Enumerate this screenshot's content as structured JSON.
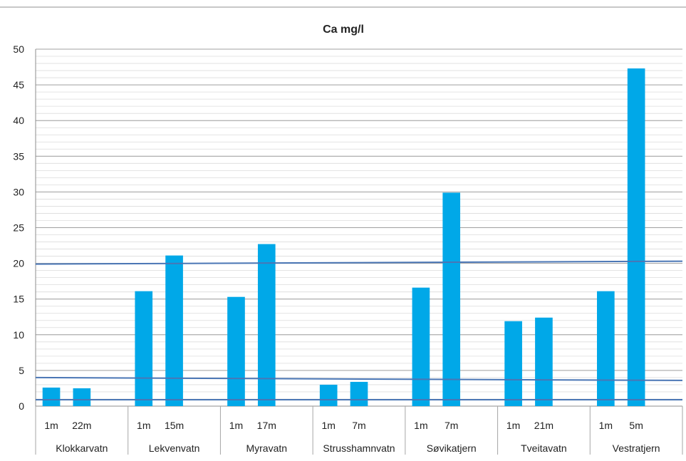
{
  "chart_data": {
    "type": "bar",
    "title": "Ca mg/l",
    "xlabel": "",
    "ylabel": "",
    "ylim": [
      0,
      50
    ],
    "yticks": [
      0,
      5,
      10,
      15,
      20,
      25,
      30,
      35,
      40,
      45,
      50
    ],
    "minor_grid_step": 1,
    "grid": true,
    "legend": "none",
    "bar_color": "#00a8e8",
    "groups": [
      {
        "name": "Klokkarvatn",
        "bars": [
          {
            "label": "1m",
            "value": 2.6
          },
          {
            "label": "22m",
            "value": 2.5
          }
        ]
      },
      {
        "name": "Lekvenvatn",
        "bars": [
          {
            "label": "1m",
            "value": 16.1
          },
          {
            "label": "15m",
            "value": 21.1
          }
        ]
      },
      {
        "name": "Myravatn",
        "bars": [
          {
            "label": "1m",
            "value": 15.3
          },
          {
            "label": "17m",
            "value": 22.7
          }
        ]
      },
      {
        "name": "Strusshamnvatn",
        "bars": [
          {
            "label": "1m",
            "value": 3.0
          },
          {
            "label": "7m",
            "value": 3.4
          }
        ]
      },
      {
        "name": "Søvikatjern",
        "bars": [
          {
            "label": "1m",
            "value": 16.6
          },
          {
            "label": "7m",
            "value": 29.9
          }
        ]
      },
      {
        "name": "Tveitavatn",
        "bars": [
          {
            "label": "1m",
            "value": 11.9
          },
          {
            "label": "21m",
            "value": 12.4
          }
        ]
      },
      {
        "name": "Vestratjern",
        "bars": [
          {
            "label": "1m",
            "value": 16.1
          },
          {
            "label": "5m",
            "value": 47.3
          }
        ]
      }
    ],
    "reference_lines": [
      {
        "start": 19.9,
        "end": 20.3,
        "color": "#4a76b5"
      },
      {
        "start": 4.0,
        "end": 3.6,
        "color": "#4a76b5"
      },
      {
        "start": 0.9,
        "end": 0.9,
        "color": "#4a76b5"
      }
    ]
  }
}
